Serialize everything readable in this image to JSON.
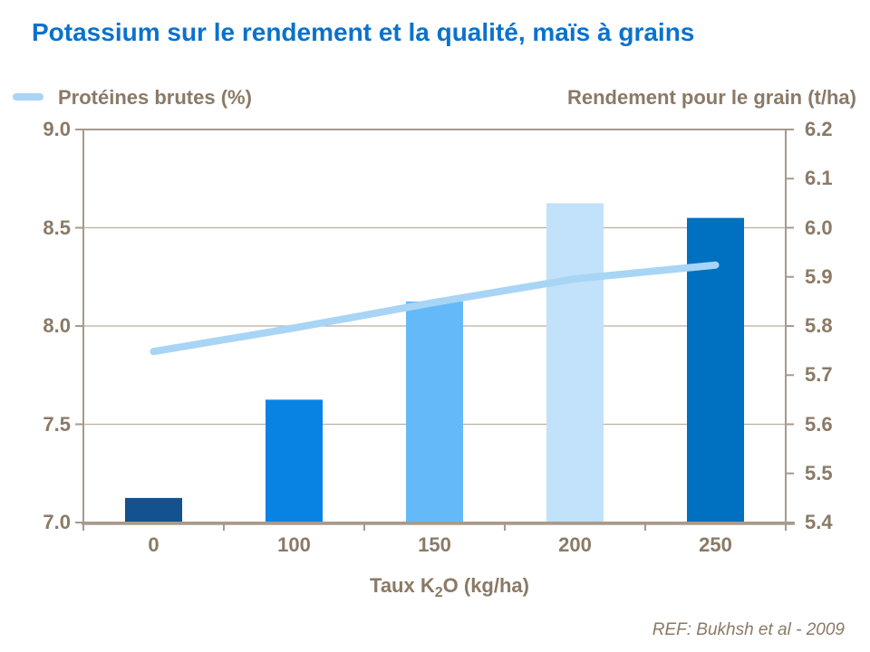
{
  "title": {
    "text": "Potassium sur le rendement et la qualité, maïs à grains",
    "color": "#0A72CC"
  },
  "legend": {
    "series_label": "Protéines brutes (%)",
    "right_axis_title": "Rendement pour le grain (t/ha)"
  },
  "xlabel": {
    "prefix": "Taux K",
    "sub": "2",
    "suffix": "O (kg/ha)"
  },
  "footer": {
    "ref": "REF:  Bukhsh et al - 2009"
  },
  "colors": {
    "text": "#8A7A66",
    "axis": "#A79A8C",
    "grid": "#BBB0A2",
    "line_series": "#A8D5F5"
  },
  "chart_data": {
    "type": "bar",
    "subtype": "bar+line combo, dual axis",
    "categories": [
      "0",
      "100",
      "150",
      "200",
      "250"
    ],
    "series": [
      {
        "name": "Rendement pour le grain (t/ha)",
        "type": "bar",
        "axis": "right",
        "values": [
          5.45,
          5.65,
          5.85,
          6.05,
          6.02
        ],
        "bar_colors": [
          "#14528F",
          "#0883E4",
          "#64BAF8",
          "#C2E1FA",
          "#0070C0"
        ]
      },
      {
        "name": "Protéines brutes (%)",
        "type": "line",
        "axis": "left",
        "values": [
          7.87,
          7.99,
          8.12,
          8.24,
          8.31
        ],
        "color": "#A8D5F5"
      }
    ],
    "left_axis": {
      "min": 7.0,
      "max": 9.0,
      "tick_labels": [
        "9.0",
        "8.5",
        "8.0",
        "7.5",
        "7.0"
      ]
    },
    "right_axis": {
      "min": 5.4,
      "max": 6.2,
      "tick_labels": [
        "6.2",
        "6.1",
        "6.0",
        "5.9",
        "5.8",
        "5.7",
        "5.6",
        "5.5",
        "5.4"
      ]
    },
    "xlabel": "Taux K2O (kg/ha)",
    "grid": true,
    "legend_position": "top-left"
  }
}
